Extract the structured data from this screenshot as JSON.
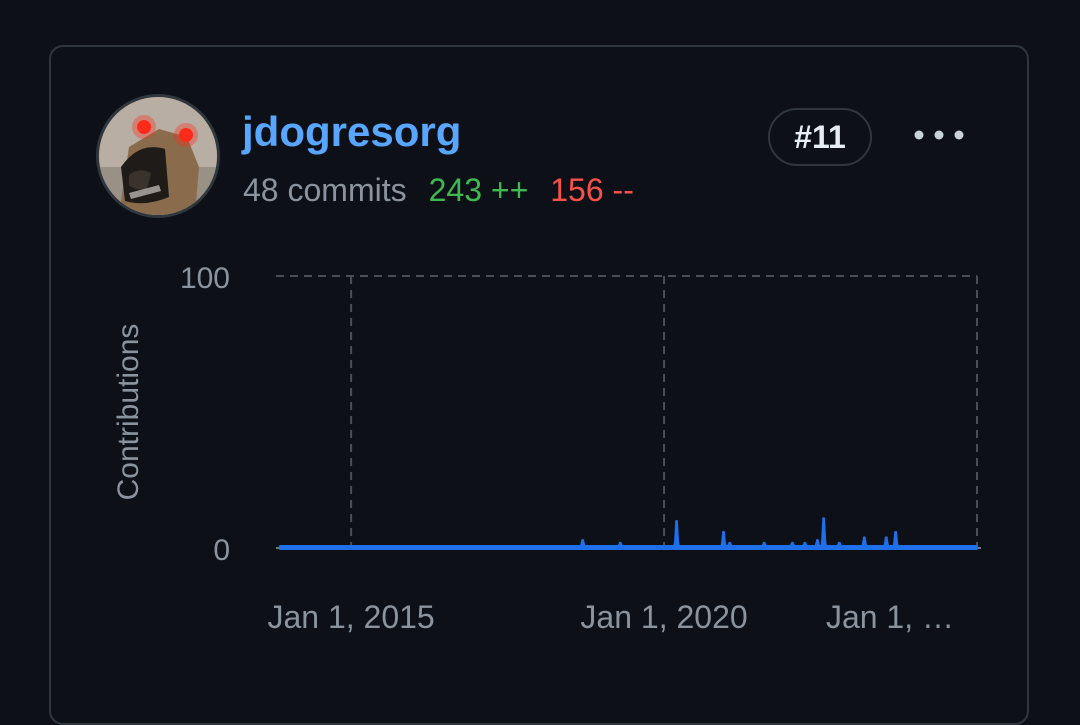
{
  "contributor": {
    "username": "jdogresorg",
    "commits": "48 commits",
    "additions": "243 ++",
    "deletions": "156 --",
    "rank": "#11"
  },
  "colors": {
    "background": "#0d1117",
    "border": "#30363d",
    "link": "#58a6ff",
    "additions": "#3fb950",
    "deletions": "#f85149",
    "series": "#1f6feb"
  },
  "icons": {
    "avatar": "avatar-image",
    "more": "kebab-horizontal-icon"
  },
  "chart_data": {
    "type": "area",
    "ylabel": "Contributions",
    "xlabel": "",
    "ylim": [
      0,
      100
    ],
    "y_ticks": [
      "0",
      "100"
    ],
    "x_ticks": [
      {
        "label": "Jan 1, 2015",
        "value": 2015.0
      },
      {
        "label": "Jan 1, 2020",
        "value": 2020.0
      },
      {
        "label": "Jan 1, …",
        "value": 2025.0
      }
    ],
    "grid": true,
    "x_range": [
      2013.8,
      2025.0
    ],
    "series": [
      {
        "points": [
          [
            2018.7,
            2
          ],
          [
            2019.3,
            1
          ],
          [
            2020.2,
            9
          ],
          [
            2020.95,
            5
          ],
          [
            2021.05,
            1
          ],
          [
            2021.6,
            1
          ],
          [
            2022.05,
            1
          ],
          [
            2022.25,
            1
          ],
          [
            2022.45,
            2
          ],
          [
            2022.55,
            10
          ],
          [
            2022.8,
            1
          ],
          [
            2023.2,
            3
          ],
          [
            2023.55,
            3
          ],
          [
            2023.7,
            5
          ]
        ]
      }
    ]
  }
}
